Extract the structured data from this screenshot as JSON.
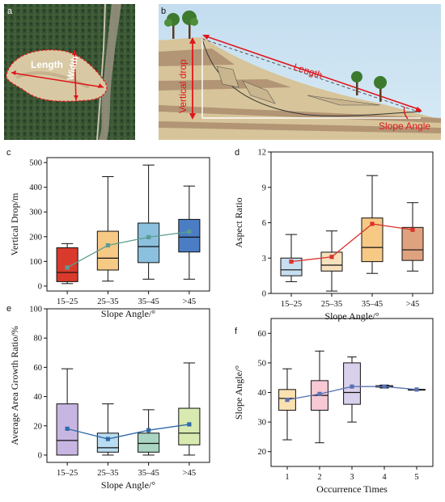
{
  "panels": {
    "a": {
      "letter": "a",
      "length_label": "Length",
      "width_label": "Width"
    },
    "b": {
      "letter": "b",
      "length_label": "Length",
      "vertical_drop_label": "Vertical drop",
      "slope_angle_label": "Slope Angle"
    }
  },
  "colors": {
    "annotation_red": "#e0161b",
    "box_c": [
      "#d93a2b",
      "#f6c985",
      "#8cc0df",
      "#4a7dc4"
    ],
    "box_d": [
      "#c8dff0",
      "#f7e1bd",
      "#f6c985",
      "#dfa27f"
    ],
    "box_e": [
      "#c8b6e2",
      "#b9dcf0",
      "#a9d5c2",
      "#d8eab0"
    ],
    "box_f": [
      "#fbe0b0",
      "#f7c9d4",
      "#d9d0ec",
      "#d2d8ef",
      "#ffffff"
    ],
    "mean_c": "#5b9e90",
    "mean_d": "#d9342b",
    "mean_e": "#2f6aa8",
    "mean_f": "#5b72b3"
  },
  "chart_data": [
    {
      "id": "c",
      "letter": "c",
      "type": "box",
      "categories": [
        "15–25",
        "25–35",
        "35–45",
        ">45"
      ],
      "xlabel": "Slope Angle/°",
      "ylabel": "Vertical Drop/m",
      "ylim": [
        -20,
        520
      ],
      "yticks": [
        0,
        100,
        200,
        300,
        400,
        500
      ],
      "boxes": [
        {
          "whisker_low": 10,
          "q1": 18,
          "median": 55,
          "q3": 155,
          "whisker_high": 172
        },
        {
          "whisker_low": 20,
          "q1": 65,
          "median": 113,
          "q3": 222,
          "whisker_high": 443
        },
        {
          "whisker_low": 28,
          "q1": 95,
          "median": 160,
          "q3": 255,
          "whisker_high": 490
        },
        {
          "whisker_low": 28,
          "q1": 138,
          "median": 198,
          "q3": 270,
          "whisker_high": 405
        }
      ],
      "means": [
        75,
        165,
        198,
        220
      ]
    },
    {
      "id": "d",
      "letter": "d",
      "type": "box",
      "categories": [
        "15–25",
        "25–35",
        "35–45",
        ">45"
      ],
      "xlabel": "Slope Angle/°",
      "ylabel": "Aspect Ratio",
      "ylim": [
        0,
        12
      ],
      "yticks": [
        0,
        3,
        6,
        9,
        12
      ],
      "boxes": [
        {
          "whisker_low": 1,
          "q1": 1.5,
          "median": 2.0,
          "q3": 3.0,
          "whisker_high": 5.0
        },
        {
          "whisker_low": 0.2,
          "q1": 1.9,
          "median": 2.4,
          "q3": 3.5,
          "whisker_high": 5.3
        },
        {
          "whisker_low": 1.7,
          "q1": 2.7,
          "median": 3.9,
          "q3": 6.4,
          "whisker_high": 10.0
        },
        {
          "whisker_low": 1.9,
          "q1": 2.8,
          "median": 3.7,
          "q3": 5.6,
          "whisker_high": 7.7
        }
      ],
      "means": [
        2.7,
        3.1,
        5.9,
        5.4
      ]
    },
    {
      "id": "e",
      "letter": "e",
      "type": "box",
      "categories": [
        "15–25",
        "25–35",
        "35–45",
        ">45"
      ],
      "xlabel": "Slope Angle/°",
      "ylabel": "Average Area Growth Ratio/%",
      "ylim": [
        -5,
        100
      ],
      "yticks": [
        0,
        20,
        40,
        60,
        80,
        100
      ],
      "boxes": [
        {
          "whisker_low": 0,
          "q1": 0,
          "median": 10,
          "q3": 35,
          "whisker_high": 59
        },
        {
          "whisker_low": 0,
          "q1": 2,
          "median": 5,
          "q3": 15,
          "whisker_high": 35
        },
        {
          "whisker_low": 0,
          "q1": 2,
          "median": 8,
          "q3": 15,
          "whisker_high": 31
        },
        {
          "whisker_low": 0,
          "q1": 7,
          "median": 15,
          "q3": 32,
          "whisker_high": 63
        }
      ],
      "means": [
        18,
        11,
        17,
        21
      ]
    },
    {
      "id": "f",
      "letter": "f",
      "type": "box",
      "categories": [
        "1",
        "2",
        "3",
        "4",
        "5"
      ],
      "xlabel": "Occurrence Times",
      "ylabel": "Slope Angle/°",
      "ylim": [
        15,
        65
      ],
      "yticks": [
        20,
        30,
        40,
        50,
        60
      ],
      "boxes": [
        {
          "whisker_low": 24,
          "q1": 34,
          "median": 38,
          "q3": 41,
          "whisker_high": 48
        },
        {
          "whisker_low": 23,
          "q1": 34,
          "median": 39,
          "q3": 44,
          "whisker_high": 54
        },
        {
          "whisker_low": 30,
          "q1": 36,
          "median": 40,
          "q3": 50,
          "whisker_high": 52
        },
        {
          "whisker_low": 41.5,
          "q1": 41.8,
          "median": 42,
          "q3": 42.3,
          "whisker_high": 42.5
        },
        {
          "whisker_low": 41,
          "q1": 41,
          "median": 41,
          "q3": 41,
          "whisker_high": 41
        }
      ],
      "means": [
        37.5,
        39.5,
        42,
        42,
        41
      ]
    }
  ]
}
